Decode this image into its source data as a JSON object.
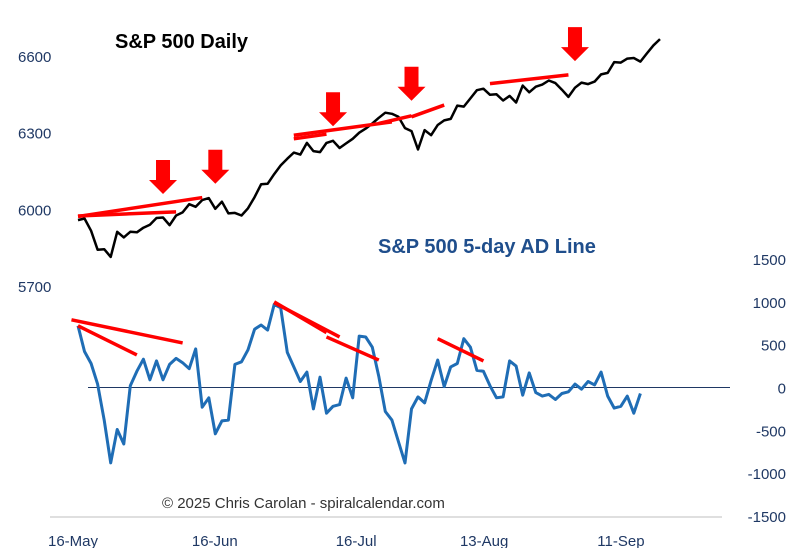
{
  "chart_data": [
    {
      "type": "line",
      "title": "S&P 500 Daily",
      "axis": "left",
      "ylim": [
        5700,
        6700
      ],
      "y_ticks": [
        "6600",
        "6300",
        "6000",
        "5700"
      ],
      "y_tick_values": [
        6600,
        6300,
        6000,
        5700
      ],
      "x_tick_labels": [
        "16-May",
        "16-Jun",
        "16-Jul",
        "13-Aug",
        "11-Sep"
      ],
      "x_tick_index": [
        0,
        22,
        44,
        63,
        84
      ],
      "color": "#000000",
      "values": [
        5958,
        5964,
        5916,
        5842,
        5844,
        5814,
        5912,
        5890,
        5912,
        5910,
        5928,
        5940,
        5966,
        5968,
        5938,
        5976,
        5988,
        6020,
        6010,
        6036,
        6044,
        6002,
        6030,
        5984,
        5986,
        5976,
        6004,
        6048,
        6098,
        6100,
        6138,
        6172,
        6198,
        6222,
        6214,
        6260,
        6228,
        6224,
        6260,
        6268,
        6240,
        6258,
        6276,
        6300,
        6316,
        6336,
        6358,
        6378,
        6374,
        6362,
        6318,
        6306,
        6234,
        6310,
        6290,
        6330,
        6348,
        6354,
        6406,
        6402,
        6434,
        6466,
        6472,
        6448,
        6450,
        6426,
        6444,
        6418,
        6484,
        6458,
        6480,
        6488,
        6504,
        6494,
        6468,
        6440,
        6476,
        6496,
        6490,
        6500,
        6528,
        6534,
        6576,
        6574,
        6590,
        6592,
        6578,
        6610,
        6642,
        6666
      ],
      "annotations": {
        "trend_lines": [
          [
            0,
            5974,
            15,
            5990
          ],
          [
            0,
            5972,
            19,
            6046
          ],
          [
            33,
            6276,
            38,
            6294
          ],
          [
            33,
            6290,
            48,
            6342
          ],
          [
            46,
            6336,
            51,
            6366
          ],
          [
            51,
            6362,
            56,
            6408
          ],
          [
            63,
            6492,
            75,
            6526
          ]
        ],
        "down_arrows": [
          [
            13,
            6060
          ],
          [
            21,
            6100
          ],
          [
            39,
            6325
          ],
          [
            51,
            6425
          ],
          [
            76,
            6580
          ]
        ]
      }
    },
    {
      "type": "line",
      "title": "S&P 500 5-day AD Line",
      "axis": "right",
      "ylim": [
        -1500,
        1500
      ],
      "y_ticks": [
        "1500",
        "1000",
        "500",
        "0",
        "-500",
        "-1000",
        "-1500"
      ],
      "y_tick_values": [
        1500,
        1000,
        500,
        0,
        -500,
        -1000,
        -1500
      ],
      "zero_line": 0,
      "color": "#1f6db5",
      "values": [
        720,
        420,
        280,
        40,
        -380,
        -880,
        -490,
        -660,
        20,
        190,
        330,
        90,
        310,
        90,
        270,
        340,
        290,
        220,
        450,
        -230,
        -120,
        -540,
        -390,
        -380,
        270,
        300,
        440,
        680,
        730,
        670,
        970,
        930,
        410,
        240,
        70,
        180,
        -250,
        120,
        -300,
        -220,
        -200,
        110,
        -120,
        600,
        590,
        470,
        130,
        -280,
        -380,
        -630,
        -880,
        -250,
        -110,
        -180,
        80,
        320,
        10,
        240,
        280,
        570,
        470,
        200,
        190,
        20,
        -120,
        -110,
        310,
        250,
        -90,
        170,
        -60,
        -100,
        -80,
        -140,
        -70,
        -50,
        40,
        -20,
        70,
        30,
        180,
        -100,
        -240,
        -220,
        -100,
        -300,
        -70
      ],
      "annotations": {
        "trend_lines": [
          [
            -1,
            790,
            16,
            520
          ],
          [
            0,
            720,
            9,
            380
          ],
          [
            30,
            990,
            40,
            590
          ],
          [
            30,
            1000,
            38,
            640
          ],
          [
            38,
            590,
            46,
            320
          ],
          [
            55,
            570,
            62,
            310
          ]
        ]
      }
    }
  ],
  "credit": "© 2025 Chris Carolan - spiralcalendar.com"
}
